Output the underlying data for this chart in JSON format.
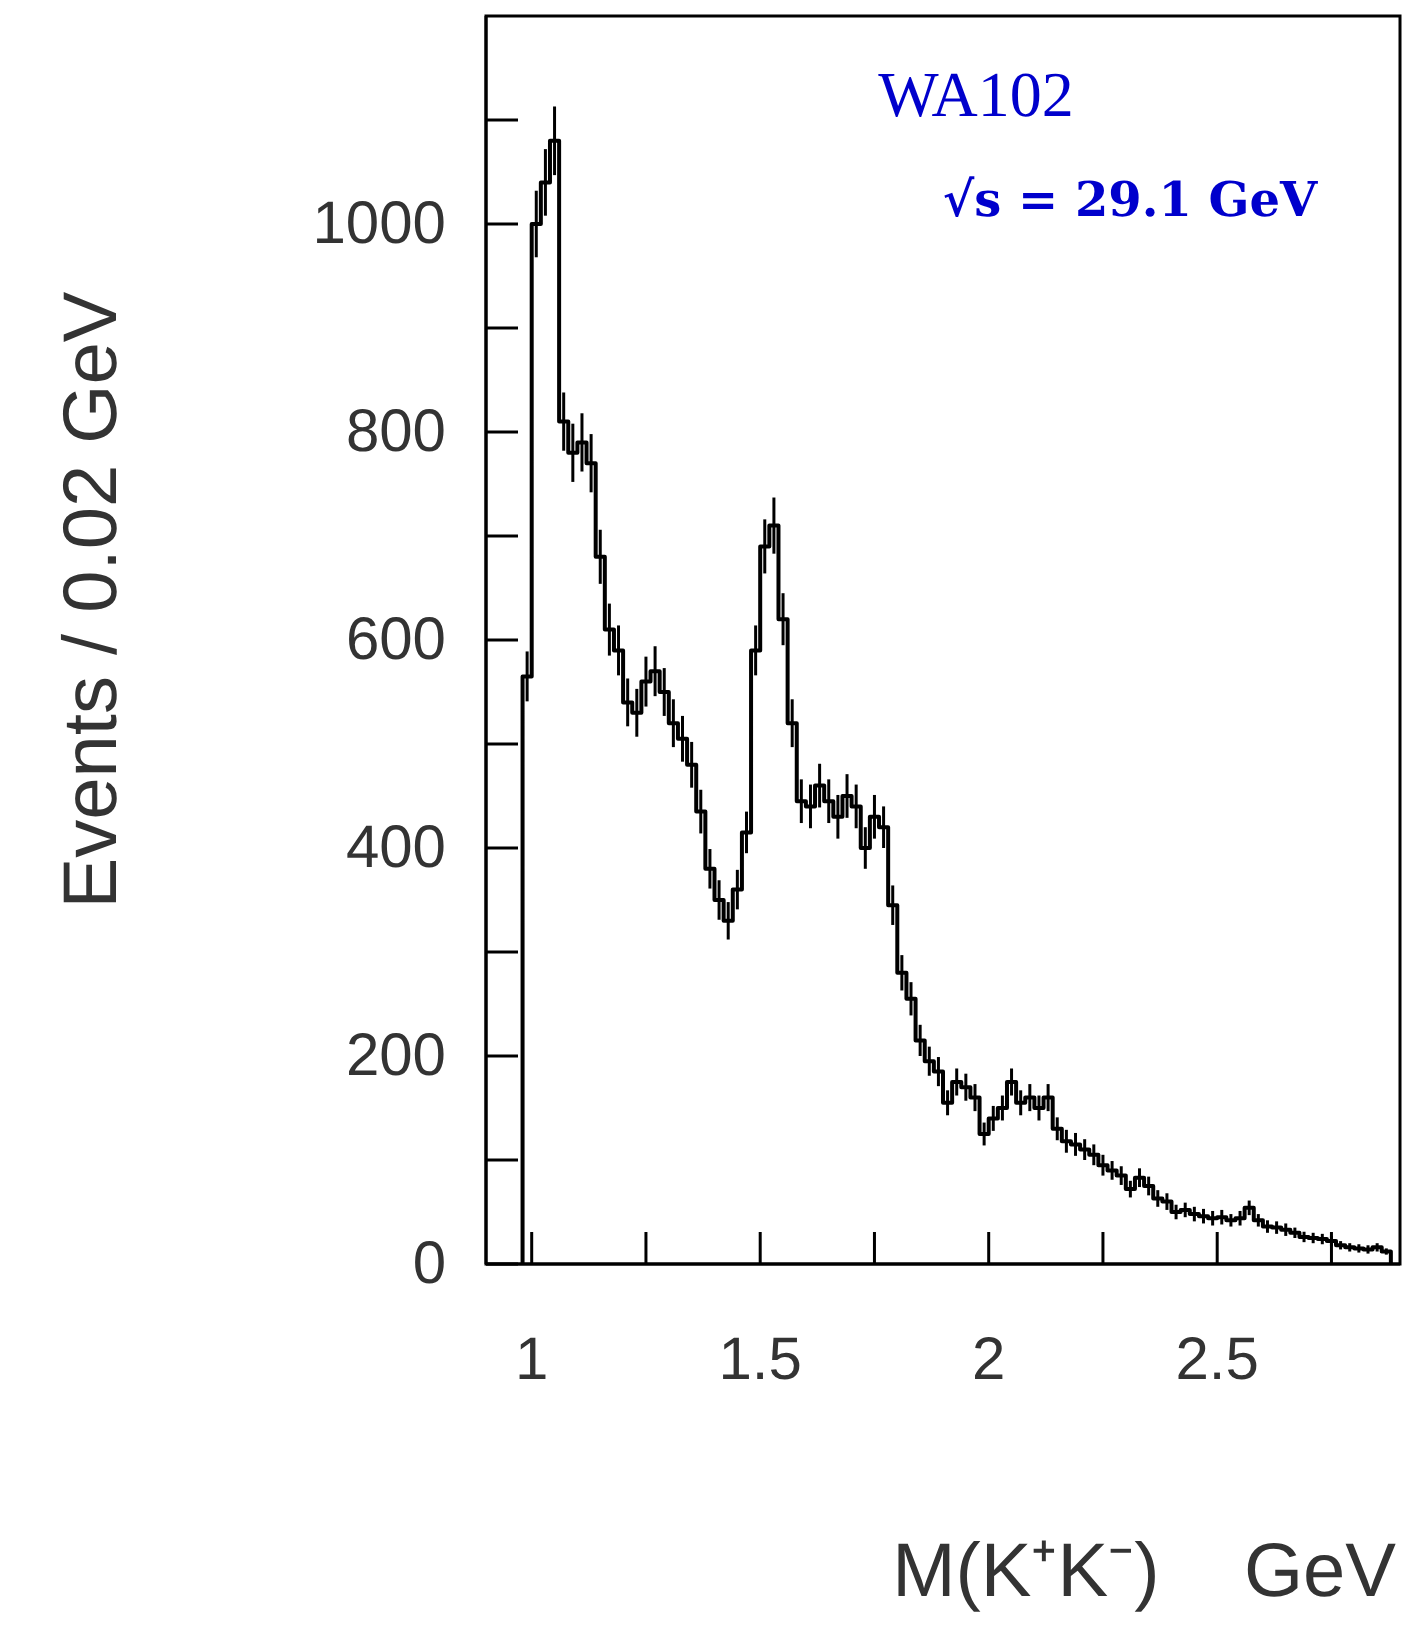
{
  "chart_data": {
    "type": "histogram",
    "xlabel": "M(K⁺K⁻)    GeV",
    "ylabel": "Events / 0.02 GeV",
    "annotations": [
      "WA102",
      "√s = 29.1 GeV"
    ],
    "xlim": [
      0.9,
      2.9
    ],
    "xticks": [
      1,
      {
        "value": 1.25,
        "label": null
      },
      1.5,
      {
        "value": 1.75,
        "label": null
      },
      2,
      {
        "value": 2.25,
        "label": null
      },
      2.5,
      {
        "value": 2.75,
        "label": null
      }
    ],
    "ylim": [
      0,
      1200
    ],
    "yticks": [
      0,
      {
        "value": 100,
        "label": null
      },
      200,
      {
        "value": 300,
        "label": null
      },
      400,
      {
        "value": 500,
        "label": null
      },
      600,
      {
        "value": 700,
        "label": null
      },
      800,
      {
        "value": 900,
        "label": null
      },
      1000,
      {
        "value": 1100,
        "label": null
      }
    ],
    "color": "#000000",
    "bins": [
      0.98,
      1.0,
      1.02,
      1.04,
      1.06,
      1.08,
      1.1,
      1.12,
      1.14,
      1.16,
      1.18,
      1.2,
      1.22,
      1.24,
      1.26,
      1.28,
      1.3,
      1.32,
      1.34,
      1.36,
      1.38,
      1.4,
      1.42,
      1.44,
      1.46,
      1.48,
      1.5,
      1.52,
      1.54,
      1.56,
      1.58,
      1.6,
      1.62,
      1.64,
      1.66,
      1.68,
      1.7,
      1.72,
      1.74,
      1.76,
      1.78,
      1.8,
      1.82,
      1.84,
      1.86,
      1.88,
      1.9,
      1.92,
      1.94,
      1.96,
      1.98,
      2.0,
      2.02,
      2.04,
      2.06,
      2.08,
      2.1,
      2.12,
      2.14,
      2.16,
      2.18,
      2.2,
      2.22,
      2.24,
      2.26,
      2.28,
      2.3,
      2.32,
      2.34,
      2.36,
      2.38,
      2.4,
      2.42,
      2.44,
      2.46,
      2.48,
      2.5,
      2.52,
      2.54,
      2.56,
      2.58,
      2.6,
      2.62,
      2.64,
      2.66,
      2.68,
      2.7,
      2.72,
      2.74,
      2.76,
      2.78,
      2.8,
      2.82,
      2.84,
      2.86,
      2.88
    ],
    "values": [
      565,
      1000,
      1040,
      1080,
      810,
      780,
      790,
      770,
      680,
      610,
      590,
      540,
      530,
      560,
      570,
      550,
      520,
      505,
      480,
      435,
      380,
      350,
      330,
      360,
      415,
      590,
      690,
      710,
      620,
      520,
      445,
      440,
      460,
      445,
      430,
      450,
      440,
      400,
      430,
      420,
      345,
      280,
      255,
      215,
      195,
      185,
      155,
      175,
      170,
      160,
      125,
      140,
      150,
      175,
      155,
      160,
      150,
      160,
      130,
      118,
      115,
      110,
      105,
      95,
      90,
      85,
      72,
      83,
      75,
      63,
      60,
      50,
      52,
      48,
      46,
      44,
      45,
      42,
      44,
      54,
      42,
      36,
      35,
      33,
      30,
      26,
      25,
      24,
      22,
      18,
      16,
      15,
      14,
      16,
      12
    ],
    "errors": [
      24,
      32,
      32,
      33,
      28,
      28,
      28,
      28,
      26,
      25,
      24,
      23,
      23,
      24,
      24,
      23,
      23,
      22,
      22,
      21,
      19,
      19,
      18,
      19,
      20,
      24,
      26,
      27,
      25,
      23,
      21,
      21,
      21,
      21,
      21,
      21,
      21,
      20,
      21,
      20,
      19,
      17,
      16,
      15,
      14,
      14,
      12,
      13,
      13,
      13,
      11,
      12,
      12,
      13,
      12,
      13,
      12,
      13,
      11,
      11,
      11,
      10,
      10,
      10,
      9,
      9,
      8,
      9,
      9,
      8,
      8,
      7,
      7,
      7,
      7,
      7,
      7,
      6,
      7,
      7,
      6,
      6,
      6,
      6,
      5,
      5,
      5,
      5,
      5,
      4,
      4,
      4,
      4,
      4,
      3
    ]
  }
}
